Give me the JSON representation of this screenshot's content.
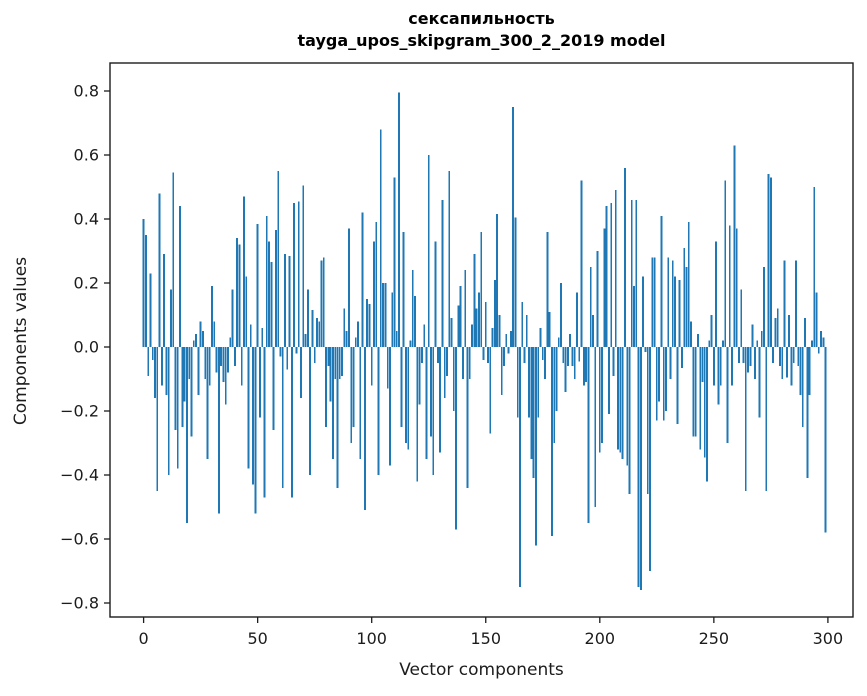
{
  "title": {
    "line1": "сексапильность",
    "line2": "tayga_upos_skipgram_300_2_2019 model"
  },
  "chart_data": {
    "type": "bar",
    "title": "сексапильность",
    "subtitle": "tayga_upos_skipgram_300_2_2019 model",
    "xlabel": "Vector components",
    "ylabel": "Components values",
    "x_start": 0,
    "x_step": 1,
    "n_components": 300,
    "xlim": [
      -13.4,
      309.7
    ],
    "ylim": [
      -0.85,
      0.89
    ],
    "xticks": [
      0,
      50,
      100,
      150,
      200,
      250,
      300
    ],
    "yticks": [
      -0.8,
      -0.6,
      -0.4,
      -0.2,
      0.0,
      0.2,
      0.4,
      0.6,
      0.8
    ],
    "grid": false,
    "legend": null,
    "bar_color": "#1f77b4",
    "values": [
      0.4,
      0.35,
      -0.09,
      0.23,
      -0.04,
      -0.16,
      -0.45,
      0.48,
      -0.12,
      0.29,
      -0.15,
      -0.4,
      0.18,
      0.545,
      -0.26,
      -0.38,
      0.44,
      -0.25,
      -0.17,
      -0.55,
      -0.1,
      -0.28,
      0.02,
      0.04,
      -0.15,
      0.08,
      0.05,
      -0.1,
      -0.35,
      -0.12,
      0.19,
      0.08,
      -0.08,
      -0.52,
      -0.06,
      -0.11,
      -0.18,
      -0.08,
      0.03,
      0.18,
      -0.06,
      0.34,
      0.32,
      -0.12,
      0.47,
      0.22,
      -0.38,
      0.07,
      -0.43,
      -0.52,
      0.385,
      -0.22,
      0.06,
      -0.47,
      0.41,
      0.33,
      0.265,
      -0.26,
      0.365,
      0.55,
      -0.03,
      -0.44,
      0.29,
      -0.07,
      0.285,
      -0.47,
      0.45,
      -0.02,
      0.455,
      -0.16,
      0.505,
      0.04,
      0.18,
      -0.4,
      0.115,
      -0.05,
      0.09,
      0.08,
      0.27,
      0.28,
      -0.25,
      -0.06,
      -0.17,
      -0.35,
      -0.1,
      -0.44,
      -0.1,
      -0.09,
      0.12,
      0.05,
      0.37,
      -0.3,
      -0.25,
      0.03,
      0.08,
      -0.35,
      0.42,
      -0.51,
      0.15,
      0.135,
      -0.12,
      0.33,
      0.39,
      -0.4,
      0.68,
      0.2,
      0.2,
      -0.13,
      -0.37,
      0.17,
      0.53,
      0.05,
      0.795,
      -0.25,
      0.36,
      -0.3,
      -0.32,
      0.02,
      0.24,
      0.16,
      -0.42,
      -0.18,
      -0.05,
      0.07,
      -0.35,
      0.6,
      -0.28,
      -0.4,
      0.33,
      -0.05,
      -0.33,
      0.46,
      -0.16,
      -0.09,
      0.55,
      0.09,
      -0.2,
      -0.57,
      0.13,
      0.19,
      -0.1,
      0.24,
      -0.44,
      -0.1,
      0.07,
      0.29,
      0.12,
      0.17,
      0.36,
      -0.04,
      0.14,
      -0.05,
      -0.27,
      0.06,
      0.21,
      0.415,
      0.1,
      -0.15,
      -0.06,
      0.04,
      -0.02,
      0.05,
      0.75,
      0.405,
      -0.22,
      -0.75,
      0.14,
      -0.05,
      0.1,
      -0.22,
      -0.35,
      -0.41,
      -0.62,
      -0.22,
      0.06,
      -0.04,
      -0.1,
      0.36,
      0.11,
      -0.59,
      -0.3,
      -0.2,
      0.03,
      0.2,
      -0.05,
      -0.14,
      -0.06,
      0.04,
      -0.06,
      -0.1,
      0.17,
      -0.045,
      0.52,
      -0.12,
      -0.11,
      -0.55,
      0.25,
      0.1,
      -0.5,
      0.3,
      -0.33,
      -0.3,
      0.37,
      0.44,
      -0.21,
      0.45,
      -0.09,
      0.49,
      -0.32,
      -0.33,
      -0.35,
      0.56,
      -0.37,
      -0.46,
      0.46,
      0.19,
      0.46,
      -0.75,
      -0.76,
      0.22,
      -0.015,
      -0.46,
      -0.7,
      0.28,
      0.28,
      -0.23,
      -0.17,
      0.41,
      -0.23,
      -0.2,
      0.28,
      -0.1,
      0.27,
      0.22,
      -0.24,
      0.21,
      -0.065,
      0.31,
      0.25,
      0.39,
      0.08,
      -0.28,
      -0.28,
      0.04,
      -0.32,
      -0.11,
      -0.345,
      -0.42,
      0.02,
      0.1,
      -0.12,
      0.33,
      -0.18,
      -0.12,
      0.02,
      0.52,
      -0.3,
      0.38,
      -0.12,
      0.63,
      0.37,
      -0.05,
      0.18,
      -0.05,
      -0.45,
      -0.08,
      -0.06,
      0.07,
      -0.1,
      0.02,
      -0.22,
      0.05,
      0.25,
      -0.45,
      0.54,
      0.53,
      -0.05,
      0.09,
      0.12,
      -0.06,
      -0.1,
      0.27,
      -0.095,
      0.1,
      -0.12,
      -0.05,
      0.27,
      -0.06,
      -0.15,
      -0.25,
      0.09,
      -0.41,
      -0.15,
      0.02,
      0.5,
      0.17,
      -0.02,
      0.05,
      0.03,
      -0.58
    ]
  }
}
